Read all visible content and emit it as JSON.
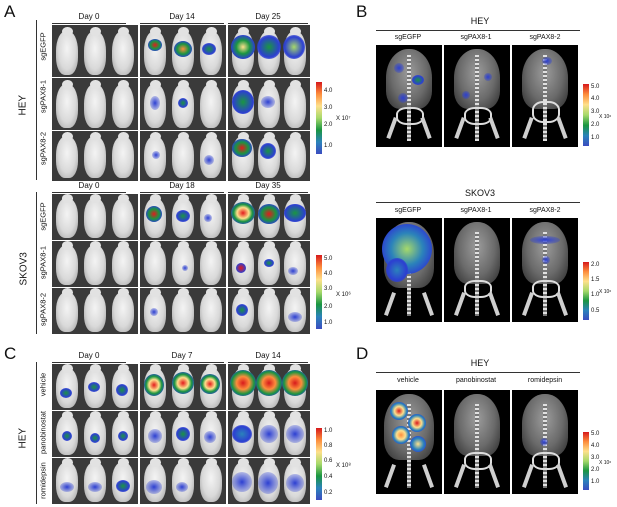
{
  "panels": {
    "a": {
      "letter": "A",
      "group": "HEY",
      "days": [
        "Day 0",
        "Day 14",
        "Day 25"
      ],
      "rows": [
        "sgEGFP",
        "sgPAX8-1",
        "sgPAX8-2"
      ],
      "scale": {
        "ticks": [
          "4.0",
          "3.0",
          "2.0",
          "1.0"
        ],
        "unit": "X 10⁷"
      }
    },
    "a2": {
      "group": "SKOV3",
      "days": [
        "Day 0",
        "Day 18",
        "Day 35"
      ],
      "rows": [
        "sgEGFP",
        "sgPAX8-1",
        "sgPAX8-2"
      ],
      "scale": {
        "ticks": [
          "5.0",
          "4.0",
          "3.0",
          "2.0",
          "1.0"
        ],
        "unit": "X 10⁶"
      }
    },
    "b": {
      "letter": "B",
      "title": "HEY",
      "cols": [
        "sgEGFP",
        "sgPAX8-1",
        "sgPAX8-2"
      ],
      "scale": {
        "ticks": [
          "5.0",
          "4.0",
          "3.0",
          "2.0",
          "1.0"
        ],
        "unit": "X 10⁶"
      }
    },
    "b2": {
      "title": "SKOV3",
      "cols": [
        "sgEGFP",
        "sgPAX8-1",
        "sgPAX8-2"
      ],
      "scale": {
        "ticks": [
          "2.0",
          "1.5",
          "1.0",
          "0.5"
        ],
        "unit": "X 10⁶"
      }
    },
    "c": {
      "letter": "C",
      "group": "HEY",
      "days": [
        "Day 0",
        "Day 7",
        "Day 14"
      ],
      "rows": [
        "vehicle",
        "panobinostat",
        "romidepsin"
      ],
      "scale": {
        "ticks": [
          "1.0",
          "0.8",
          "0.6",
          "0.4",
          "0.2"
        ],
        "unit": "X 10⁸"
      }
    },
    "d": {
      "letter": "D",
      "title": "HEY",
      "cols": [
        "vehicle",
        "panobinostat",
        "romidepsin"
      ],
      "scale": {
        "ticks": [
          "5.0",
          "4.0",
          "3.0",
          "2.0",
          "1.0"
        ],
        "unit": "X 10⁶"
      }
    }
  },
  "colors": {
    "colorbar": [
      "#d7191c",
      "#fd8d3c",
      "#fee08b",
      "#a6d96a",
      "#1a9641",
      "#2b83ba",
      "#3b4cc0"
    ]
  }
}
